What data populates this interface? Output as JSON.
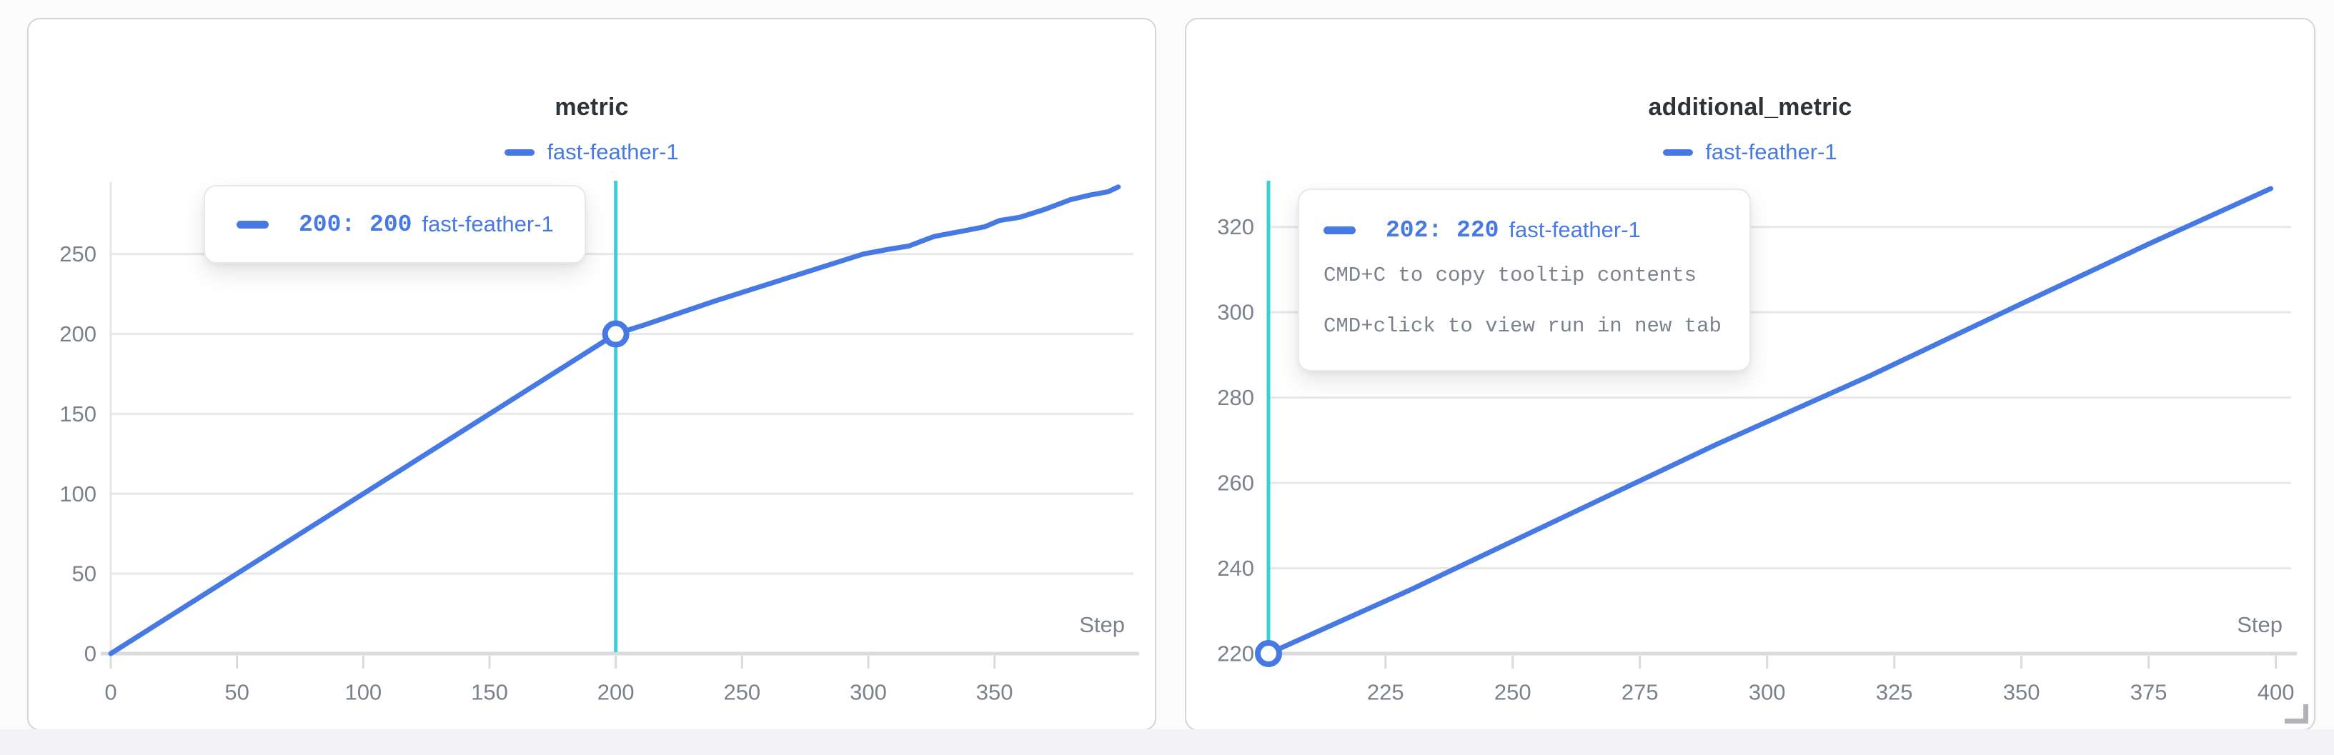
{
  "colors": {
    "accent_blue": "#4679e4",
    "crosshair_teal": "#3ecdd3",
    "grid": "#e7e7e9",
    "axis": "#d9dadc",
    "tick_text": "#7a818c",
    "title_text": "#2e3338",
    "hint_text": "#7b828c"
  },
  "chart_data": [
    {
      "type": "line",
      "title": "metric",
      "xlabel": "Step",
      "legend": [
        {
          "label": "fast-feather-1",
          "color": "#4679e4"
        }
      ],
      "x_ticks": [
        0,
        50,
        100,
        150,
        200,
        250,
        300,
        350
      ],
      "y_ticks": [
        0,
        50,
        100,
        150,
        200,
        250
      ],
      "xlim": [
        0,
        405
      ],
      "ylim": [
        0,
        295
      ],
      "grid": true,
      "y_axis_line": true,
      "legend_position": "top-center",
      "crosshair_x": 200,
      "highlight": {
        "x": 200,
        "y": 200
      },
      "series": [
        {
          "name": "fast-feather-1",
          "color": "#4679e4",
          "points": [
            [
              0,
              0
            ],
            [
              25,
              25
            ],
            [
              50,
              50
            ],
            [
              75,
              75
            ],
            [
              100,
              100
            ],
            [
              125,
              125
            ],
            [
              150,
              150
            ],
            [
              175,
              175
            ],
            [
              200,
              200
            ],
            [
              212,
              206
            ],
            [
              225,
              213
            ],
            [
              240,
              221
            ],
            [
              260,
              231
            ],
            [
              280,
              241
            ],
            [
              298,
              250
            ],
            [
              308,
              253
            ],
            [
              316,
              255
            ],
            [
              326,
              261
            ],
            [
              336,
              264
            ],
            [
              346,
              267
            ],
            [
              352,
              271
            ],
            [
              360,
              273
            ],
            [
              370,
              278
            ],
            [
              380,
              284
            ],
            [
              388,
              287
            ],
            [
              395,
              289
            ],
            [
              399,
              292
            ]
          ]
        }
      ],
      "tooltip": {
        "value_text": "200: 200",
        "run": "fast-feather-1"
      }
    },
    {
      "type": "line",
      "title": "additional_metric",
      "xlabel": "Step",
      "legend": [
        {
          "label": "fast-feather-1",
          "color": "#4679e4"
        }
      ],
      "x_ticks": [
        225,
        250,
        275,
        300,
        325,
        350,
        375,
        400
      ],
      "y_ticks": [
        220,
        240,
        260,
        280,
        300,
        320
      ],
      "xlim": [
        202,
        403
      ],
      "ylim": [
        220,
        330.5
      ],
      "grid": true,
      "y_axis_line": false,
      "legend_position": "top-center",
      "crosshair_x": 202,
      "highlight": {
        "x": 202,
        "y": 220
      },
      "series": [
        {
          "name": "fast-feather-1",
          "color": "#4679e4",
          "points": [
            [
              202,
              220
            ],
            [
              230,
              235
            ],
            [
              260,
              252
            ],
            [
              290,
              269
            ],
            [
              320,
              285
            ],
            [
              350,
              302
            ],
            [
              375,
              316
            ],
            [
              399,
              329
            ]
          ]
        }
      ],
      "tooltip": {
        "value_text": "202: 220",
        "run": "fast-feather-1",
        "hints": [
          "CMD+C to copy tooltip contents",
          "CMD+click to view run in new tab"
        ]
      }
    }
  ]
}
